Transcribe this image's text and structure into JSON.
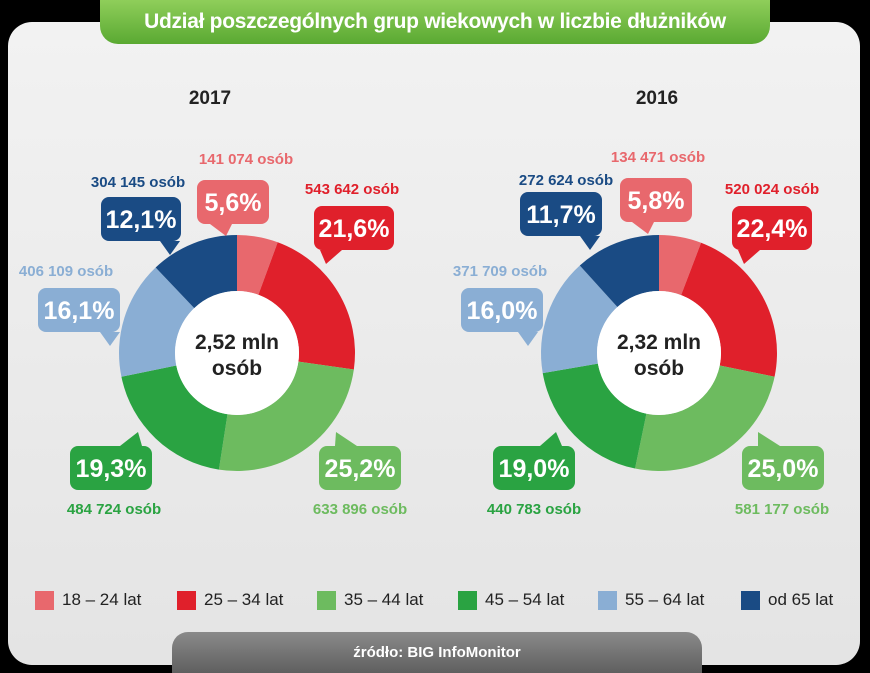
{
  "title": "Udział poszczególnych grup wiekowych w liczbie dłużników",
  "source": "źródło: BIG InfoMonitor",
  "colors": {
    "18 – 24 lat": "#e8686d",
    "25 – 34 lat": "#e0202b",
    "35 – 44 lat": "#6dbb5f",
    "45 – 54 lat": "#2aa342",
    "55 – 64 lat": "#8aaed4",
    "od 65 lat": "#1a4b84"
  },
  "legend": [
    "18 – 24 lat",
    "25 – 34 lat",
    "35 – 44 lat",
    "45 – 54 lat",
    "55 – 64 lat",
    "od 65 lat"
  ],
  "chart_data": [
    {
      "type": "pie",
      "title": "2017",
      "center_label": [
        "2,52 mln",
        "osób"
      ],
      "categories": [
        "18 – 24 lat",
        "25 – 34 lat",
        "35 – 44 lat",
        "45 – 54 lat",
        "55 – 64 lat",
        "od 65 lat"
      ],
      "values": [
        5.6,
        21.6,
        25.2,
        19.3,
        16.1,
        12.1
      ],
      "percent_labels": [
        "5,6%",
        "21,6%",
        "25,2%",
        "19,3%",
        "16,1%",
        "12,1%"
      ],
      "count_labels": [
        "141 074 osób",
        "543 642 osób",
        "633 896 osób",
        "484 724 osób",
        "406 109 osób",
        "304 145 osób"
      ]
    },
    {
      "type": "pie",
      "title": "2016",
      "center_label": [
        "2,32 mln",
        "osób"
      ],
      "categories": [
        "18 – 24 lat",
        "25 – 34 lat",
        "35 – 44 lat",
        "45 – 54 lat",
        "55 – 64 lat",
        "od 65 lat"
      ],
      "values": [
        5.8,
        22.4,
        25.0,
        19.0,
        16.0,
        11.7
      ],
      "percent_labels": [
        "5,8%",
        "22,4%",
        "25,0%",
        "19,0%",
        "16,0%",
        "11,7%"
      ],
      "count_labels": [
        "134 471 osób",
        "520 024 osób",
        "581 177 osób",
        "440 783 osób",
        "371 709 osób",
        "272 624 osób"
      ]
    }
  ]
}
